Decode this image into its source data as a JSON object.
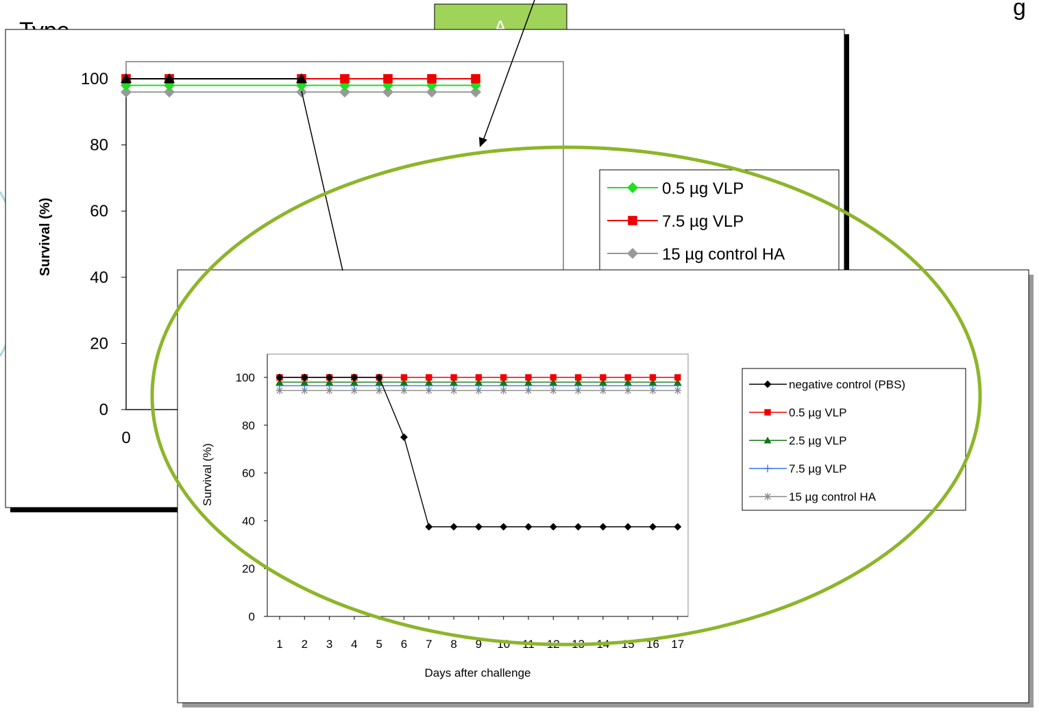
{
  "slide": {
    "partial_title": "Type",
    "partial_label_right": "g",
    "tab_label": "A"
  },
  "colors": {
    "accent_green": "#8db52a",
    "tab_green": "#9fd35a",
    "halo_teal": "#a8d8dc"
  },
  "chart_data": [
    {
      "type": "line",
      "title": "",
      "xlabel": "",
      "ylabel": "Survival (%)",
      "ylim": [
        0,
        105
      ],
      "yticks": [
        0,
        20,
        40,
        60,
        80,
        100
      ],
      "xticks_visible": [
        "0"
      ],
      "legend_position": "right",
      "x": [
        0,
        1,
        4,
        5,
        6,
        7,
        8
      ],
      "series": [
        {
          "name": "",
          "color": "#000000",
          "marker": "triangle",
          "x": [
            0,
            1,
            4
          ],
          "values": [
            100,
            100,
            100
          ]
        },
        {
          "name": "0.5 µg VLP",
          "color": "#22dd22",
          "marker": "diamond",
          "x": [
            0,
            1,
            4,
            5,
            6,
            7,
            8
          ],
          "values": [
            98,
            98,
            98,
            98,
            98,
            98,
            98
          ]
        },
        {
          "name": "7.5 µg  VLP",
          "color": "#ee0000",
          "marker": "square",
          "x": [
            0,
            1,
            4,
            5,
            6,
            7,
            8
          ],
          "values": [
            100,
            100,
            100,
            100,
            100,
            100,
            100
          ]
        },
        {
          "name": "15 µg control HA",
          "color": "#999999",
          "marker": "diamond",
          "x": [
            0,
            1,
            4,
            5,
            6,
            7,
            8
          ],
          "values": [
            96,
            96,
            96,
            96,
            96,
            96,
            96
          ]
        }
      ]
    },
    {
      "type": "line",
      "title": "",
      "xlabel": "Days after challenge",
      "ylabel": "Survival (%)",
      "ylim": [
        0,
        110
      ],
      "yticks": [
        0,
        20,
        40,
        60,
        80,
        100
      ],
      "xticks": [
        "1",
        "2",
        "3",
        "4",
        "5",
        "6",
        "7",
        "8",
        "9",
        "10",
        "11",
        "12",
        "13",
        "14",
        "15",
        "16",
        "17"
      ],
      "legend_position": "right",
      "series": [
        {
          "name": "negative control (PBS)",
          "color": "#000000",
          "marker": "diamond",
          "values": [
            100,
            100,
            100,
            100,
            100,
            75,
            37.5,
            37.5,
            37.5,
            37.5,
            37.5,
            37.5,
            37.5,
            37.5,
            37.5,
            37.5,
            37.5
          ]
        },
        {
          "name": "0.5 µg VLP",
          "color": "#ee0000",
          "marker": "square",
          "values": [
            100,
            100,
            100,
            100,
            100,
            100,
            100,
            100,
            100,
            100,
            100,
            100,
            100,
            100,
            100,
            100,
            100
          ]
        },
        {
          "name": "2.5 µg VLP",
          "color": "#117711",
          "marker": "triangle",
          "values": [
            98,
            98,
            98,
            98,
            98,
            98,
            98,
            98,
            98,
            98,
            98,
            98,
            98,
            98,
            98,
            98,
            98
          ]
        },
        {
          "name": "7.5 µg VLP",
          "color": "#3377ee",
          "marker": "plus",
          "values": [
            96.5,
            96.5,
            96.5,
            96.5,
            96.5,
            96.5,
            96.5,
            96.5,
            96.5,
            96.5,
            96.5,
            96.5,
            96.5,
            96.5,
            96.5,
            96.5,
            96.5
          ]
        },
        {
          "name": "15 µg control HA",
          "color": "#888888",
          "marker": "star",
          "values": [
            94.5,
            94.5,
            94.5,
            94.5,
            94.5,
            94.5,
            94.5,
            94.5,
            94.5,
            94.5,
            94.5,
            94.5,
            94.5,
            94.5,
            94.5,
            94.5,
            94.5
          ]
        }
      ]
    }
  ]
}
